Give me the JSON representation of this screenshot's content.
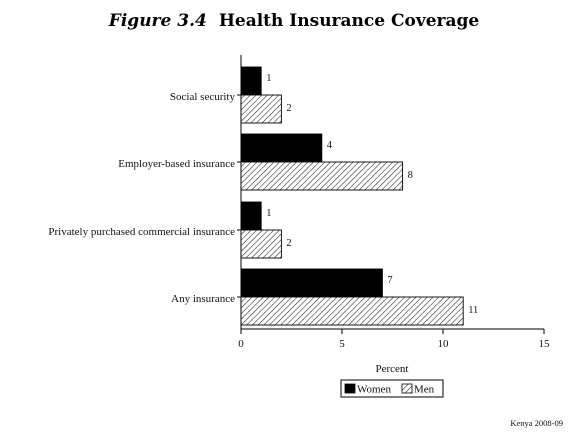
{
  "chart_data": {
    "type": "bar",
    "orientation": "horizontal",
    "title_figure": "Figure 3.4",
    "title": "Health Insurance Coverage",
    "categories": [
      "Social security",
      "Employer-based insurance",
      "Privately purchased commercial insurance",
      "Any insurance"
    ],
    "series": [
      {
        "name": "Women",
        "values": [
          1,
          4,
          1,
          7
        ],
        "color": "#000000"
      },
      {
        "name": "Men",
        "values": [
          2,
          8,
          2,
          11
        ],
        "pattern": "hatch"
      }
    ],
    "xlabel": "Percent",
    "xlim": [
      0,
      15
    ],
    "xticks": [
      0,
      5,
      10,
      15
    ],
    "legend_position": "bottom",
    "grid": false,
    "source_note": "Kenya 2008-09"
  }
}
